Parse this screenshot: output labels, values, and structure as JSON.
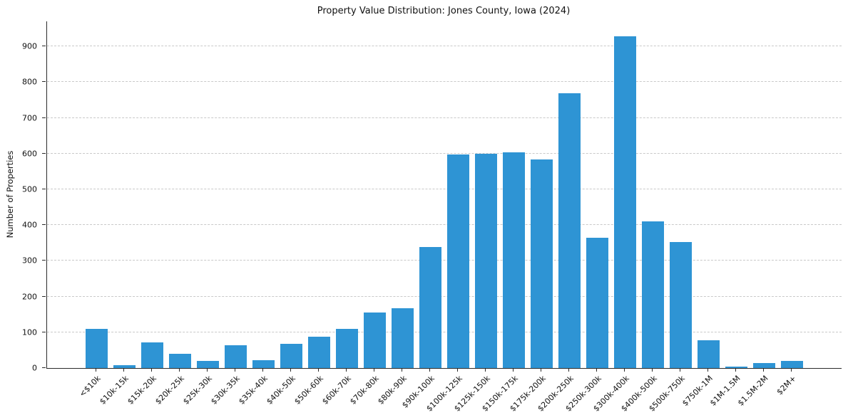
{
  "chart_data": {
    "type": "bar",
    "title": "Property Value Distribution: Jones County, Iowa (2024)",
    "xlabel": "",
    "ylabel": "Number of Properties",
    "categories": [
      "<$10k",
      "$10k-15k",
      "$15k-20k",
      "$20k-25k",
      "$25k-30k",
      "$30k-35k",
      "$35k-40k",
      "$40k-50k",
      "$50k-60k",
      "$60k-70k",
      "$70k-80k",
      "$80k-90k",
      "$90k-100k",
      "$100k-125k",
      "$125k-150k",
      "$150k-175k",
      "$175k-200k",
      "$200k-250k",
      "$250k-300k",
      "$300k-400k",
      "$400k-500k",
      "$500k-750k",
      "$750k-1M",
      "$1M-1.5M",
      "$1.5M-2M",
      "$2M+"
    ],
    "values": [
      110,
      8,
      72,
      40,
      20,
      63,
      22,
      68,
      88,
      110,
      155,
      168,
      338,
      598,
      600,
      603,
      583,
      768,
      365,
      928,
      410,
      352,
      78,
      5,
      13,
      20
    ],
    "yticks": [
      0,
      100,
      200,
      300,
      400,
      500,
      600,
      700,
      800,
      900
    ],
    "ylim": [
      0,
      970
    ],
    "bar_color": "#2E94D4",
    "grid": "horizontal-dashed",
    "legend": null,
    "x_tick_rotation_deg": 45
  }
}
